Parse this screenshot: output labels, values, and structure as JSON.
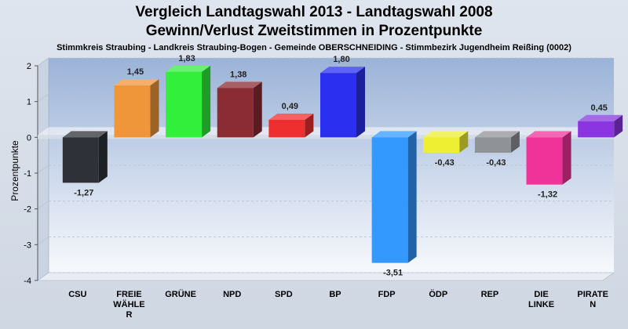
{
  "chart_data": {
    "type": "bar",
    "title": "Vergleich Landtagswahl 2013 - Landtagswahl 2008",
    "subtitle": "Gewinn/Verlust Zweitstimmen in Prozentpunkte",
    "caption": "Stimmkreis Straubing - Landkreis Straubing-Bogen - Gemeinde OBERSCHNEIDING - Stimmbezirk Jugendheim Reißing (0002)",
    "ylabel": "Prozentpunkte",
    "xlabel": "",
    "ylim": [
      -4,
      2
    ],
    "yticks": [
      2,
      1,
      0,
      -1,
      -2,
      -3,
      -4
    ],
    "grid": true,
    "categories": [
      "CSU",
      "FREIE WÄHLE R",
      "GRÜNE",
      "NPD",
      "SPD",
      "BP",
      "FDP",
      "ÖDP",
      "REP",
      "DIE LINKE",
      "PIRATE N"
    ],
    "category_lines": [
      [
        "CSU"
      ],
      [
        "FREIE",
        "WÄHLE",
        "R"
      ],
      [
        "GRÜNE"
      ],
      [
        "NPD"
      ],
      [
        "SPD"
      ],
      [
        "BP"
      ],
      [
        "FDP"
      ],
      [
        "ÖDP"
      ],
      [
        "REP"
      ],
      [
        "DIE",
        "LINKE"
      ],
      [
        "PIRATE",
        "N"
      ]
    ],
    "values": [
      -1.27,
      1.45,
      1.83,
      1.38,
      0.49,
      1.8,
      -3.51,
      -0.43,
      -0.43,
      -1.32,
      0.45
    ],
    "value_labels": [
      "-1,27",
      "1,45",
      "1,83",
      "1,38",
      "0,49",
      "1,80",
      "-3,51",
      "-0,43",
      "-0,43",
      "-1,32",
      "0,45"
    ],
    "colors": [
      "#2e3238",
      "#f0963a",
      "#32ef3c",
      "#8b2b33",
      "#ef2f2f",
      "#2a2ff0",
      "#3399ff",
      "#eeee33",
      "#8f9296",
      "#ef3399",
      "#8a35e0"
    ]
  }
}
